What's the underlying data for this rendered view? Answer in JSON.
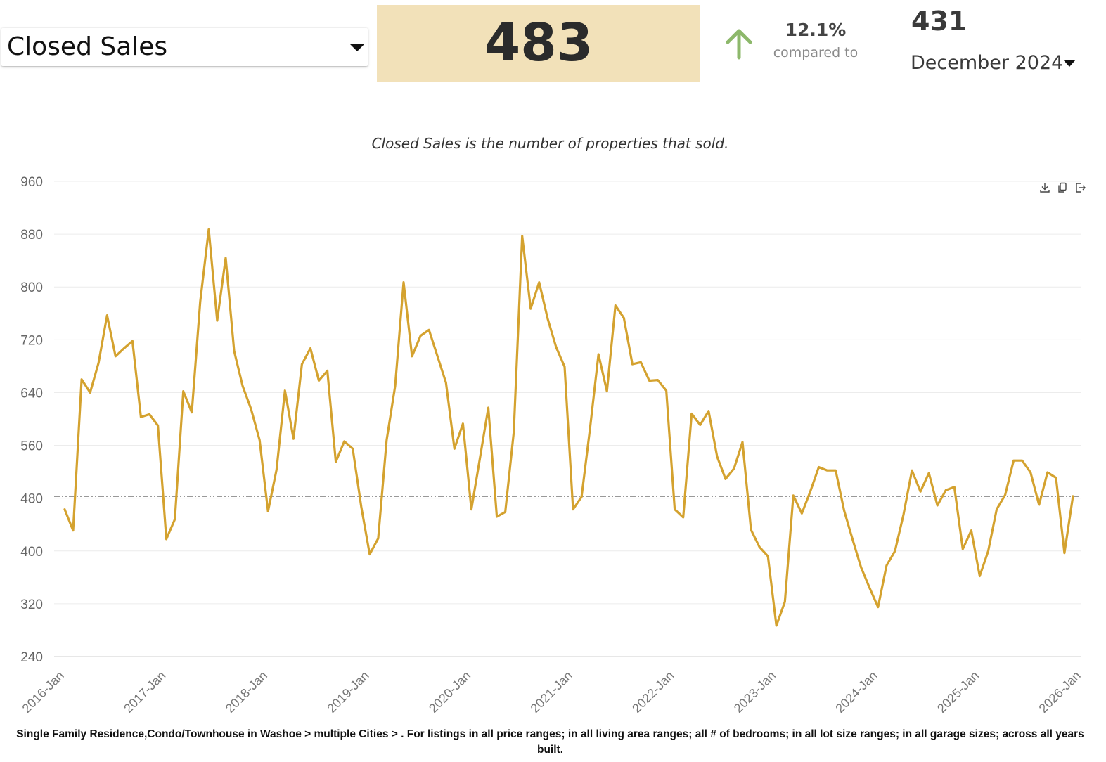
{
  "metric_selector": {
    "label": "Closed Sales"
  },
  "current_value": "483",
  "change": {
    "percent": "12.1%",
    "compared_to_label": "compared to",
    "direction": "up",
    "color": "#8db86b"
  },
  "previous": {
    "value": "431",
    "period": "December 2024"
  },
  "description": "Closed Sales is the number of properties that sold.",
  "toolbar": {
    "icons": [
      "download-icon",
      "copy-icon",
      "export-icon"
    ]
  },
  "footer_text": "Single Family Residence,Condo/Townhouse in Washoe > multiple Cities > . For listings in all price ranges; in all living area ranges; all # of bedrooms; in all lot size ranges; in all garage sizes; across all years built.",
  "chart_data": {
    "type": "line",
    "title": "",
    "xlabel": "",
    "ylabel": "",
    "ylim": [
      240,
      960
    ],
    "yticks": [
      "240",
      "320",
      "400",
      "480",
      "560",
      "640",
      "720",
      "800",
      "880",
      "960"
    ],
    "xticks": [
      "2016-Jan",
      "2017-Jan",
      "2018-Jan",
      "2019-Jan",
      "2020-Jan",
      "2021-Jan",
      "2022-Jan",
      "2023-Jan",
      "2024-Jan",
      "2025-Jan",
      "2026-Jan"
    ],
    "grid": true,
    "line_color": "#d4a22f",
    "reference_line": {
      "value": 483,
      "style": "dash-dot",
      "color": "#333333"
    },
    "series": [
      {
        "name": "",
        "start": "2016-Jan",
        "values": [
          463,
          431,
          660,
          640,
          685,
          757,
          695,
          707,
          718,
          603,
          607,
          590,
          418,
          448,
          642,
          610,
          778,
          887,
          749,
          844,
          703,
          650,
          615,
          568,
          460,
          523,
          643,
          570,
          683,
          707,
          658,
          673,
          535,
          566,
          555,
          467,
          395,
          419,
          568,
          650,
          807,
          695,
          726,
          735,
          695,
          655,
          555,
          593,
          463,
          540,
          617,
          452,
          459,
          580,
          877,
          767,
          807,
          752,
          709,
          679,
          463,
          482,
          585,
          698,
          642,
          772,
          753,
          683,
          686,
          658,
          659,
          643,
          463,
          451,
          608,
          591,
          612,
          543,
          509,
          525,
          565,
          432,
          406,
          392,
          287,
          323,
          484,
          457,
          490,
          527,
          522,
          522,
          461,
          417,
          375,
          344,
          315,
          378,
          400,
          455,
          522,
          490,
          518,
          469,
          492,
          497,
          403,
          431,
          362,
          400,
          463,
          485,
          537,
          537,
          519,
          470,
          519,
          511,
          397,
          483
        ]
      }
    ]
  }
}
